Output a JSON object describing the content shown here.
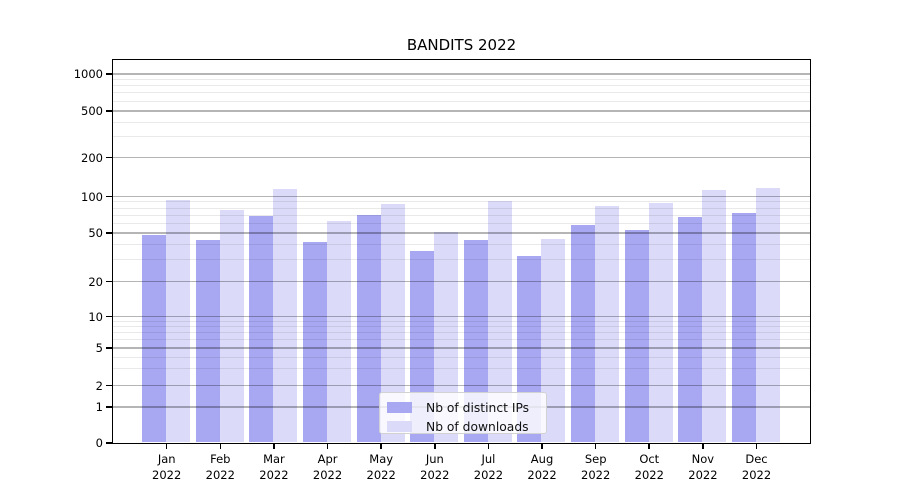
{
  "chart_data": {
    "type": "bar",
    "title": "BANDITS 2022",
    "categories": [
      "Jan 2022",
      "Feb 2022",
      "Mar 2022",
      "Apr 2022",
      "May 2022",
      "Jun 2022",
      "Jul 2022",
      "Aug 2022",
      "Sep 2022",
      "Oct 2022",
      "Nov 2022",
      "Dec 2022"
    ],
    "series": [
      {
        "name": "Nb of distinct IPs",
        "color": "#a8a8f2",
        "values": [
          48,
          43,
          68,
          42,
          70,
          35,
          43,
          32,
          58,
          52,
          67,
          72
        ]
      },
      {
        "name": "Nb of downloads",
        "color": "#dbdbf9",
        "values": [
          93,
          77,
          113,
          62,
          86,
          50,
          91,
          44,
          83,
          87,
          112,
          115
        ]
      }
    ],
    "yscale": "log-like with linear segment near zero",
    "y_tick_values": [
      0,
      1,
      2,
      5,
      10,
      20,
      50,
      100,
      200,
      500,
      1000
    ],
    "ylim": [
      0,
      1400
    ],
    "grid": true,
    "legend_position": "lower center",
    "xlabel": "",
    "ylabel": ""
  },
  "axes": {
    "y_tick_labels": [
      "1000",
      "500",
      "200",
      "100",
      "50",
      "20",
      "10",
      "5",
      "2",
      "1",
      "0"
    ],
    "x_tick_months": [
      "Jan",
      "Feb",
      "Mar",
      "Apr",
      "May",
      "Jun",
      "Jul",
      "Aug",
      "Sep",
      "Oct",
      "Nov",
      "Dec"
    ],
    "x_tick_year": "2022"
  },
  "legend": {
    "items": [
      {
        "label": "Nb of distinct IPs"
      },
      {
        "label": "Nb of downloads"
      }
    ]
  }
}
